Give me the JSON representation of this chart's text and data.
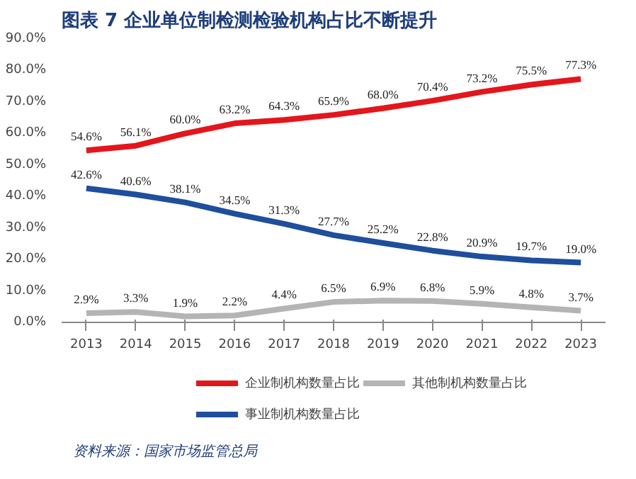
{
  "chart_data": {
    "type": "line",
    "title": "图表 7   企业单位制检测检验机构占比不断提升",
    "categories": [
      "2013",
      "2014",
      "2015",
      "2016",
      "2017",
      "2018",
      "2019",
      "2020",
      "2021",
      "2022",
      "2023"
    ],
    "series": [
      {
        "name": "企业制机构数量占比",
        "color": "#e3161c",
        "values": [
          54.6,
          56.1,
          60.0,
          63.2,
          64.3,
          65.9,
          68.0,
          70.4,
          73.2,
          75.5,
          77.3
        ],
        "value_labels": [
          "54.6%",
          "56.1%",
          "60.0%",
          "63.2%",
          "64.3%",
          "65.9%",
          "68.0%",
          "70.4%",
          "73.2%",
          "75.5%",
          "77.3%"
        ]
      },
      {
        "name": "事业制机构数量占比",
        "color": "#1f4e9c",
        "values": [
          42.6,
          40.6,
          38.1,
          34.5,
          31.3,
          27.7,
          25.2,
          22.8,
          20.9,
          19.7,
          19.0
        ],
        "value_labels": [
          "42.6%",
          "40.6%",
          "38.1%",
          "34.5%",
          "31.3%",
          "27.7%",
          "25.2%",
          "22.8%",
          "20.9%",
          "19.7%",
          "19.0%"
        ]
      },
      {
        "name": "其他制机构数量占比",
        "color": "#b4b4b4",
        "values": [
          2.9,
          3.3,
          1.9,
          2.2,
          4.4,
          6.5,
          6.9,
          6.8,
          5.9,
          4.8,
          3.7
        ],
        "value_labels": [
          "2.9%",
          "3.3%",
          "1.9%",
          "2.2%",
          "4.4%",
          "6.5%",
          "6.9%",
          "6.8%",
          "5.9%",
          "4.8%",
          "3.7%"
        ]
      }
    ],
    "ylim": [
      0,
      90
    ],
    "yticks": [
      {
        "value": 0,
        "label": "0.0%"
      },
      {
        "value": 10,
        "label": "10.0%"
      },
      {
        "value": 20,
        "label": "20.0%"
      },
      {
        "value": 30,
        "label": "30.0%"
      },
      {
        "value": 40,
        "label": "40.0%"
      },
      {
        "value": 50,
        "label": "50.0%"
      },
      {
        "value": 60,
        "label": "60.0%"
      },
      {
        "value": 70,
        "label": "70.0%"
      },
      {
        "value": 80,
        "label": "80.0%"
      },
      {
        "value": 90,
        "label": "90.0%"
      }
    ],
    "grid": false,
    "legend": "bottom",
    "marker": "none",
    "line_style": "solid",
    "annotations": [
      "资料来源：国家市场监管总局"
    ]
  }
}
